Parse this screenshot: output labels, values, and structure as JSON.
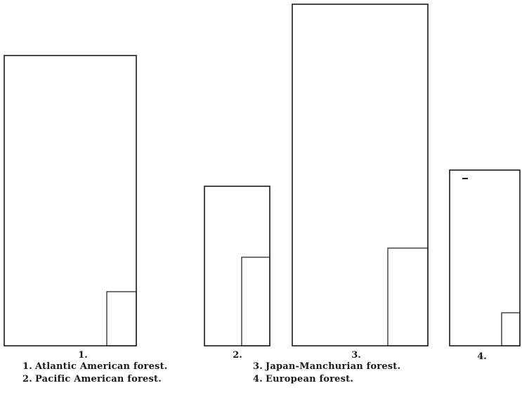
{
  "figures": [
    {
      "label": "1."
    },
    {
      "label": "2."
    },
    {
      "label": "3."
    },
    {
      "label": "4."
    }
  ],
  "legend": [
    {
      "num": "1.",
      "text": "Atlantic American forest."
    },
    {
      "num": "2.",
      "text": "Pacific American forest."
    },
    {
      "num": "3.",
      "text": "Japan-Manchurian forest."
    },
    {
      "num": "4.",
      "text": "European forest."
    }
  ],
  "colors": {
    "stroke": "#1a1a1a",
    "background": "#ffffff"
  }
}
